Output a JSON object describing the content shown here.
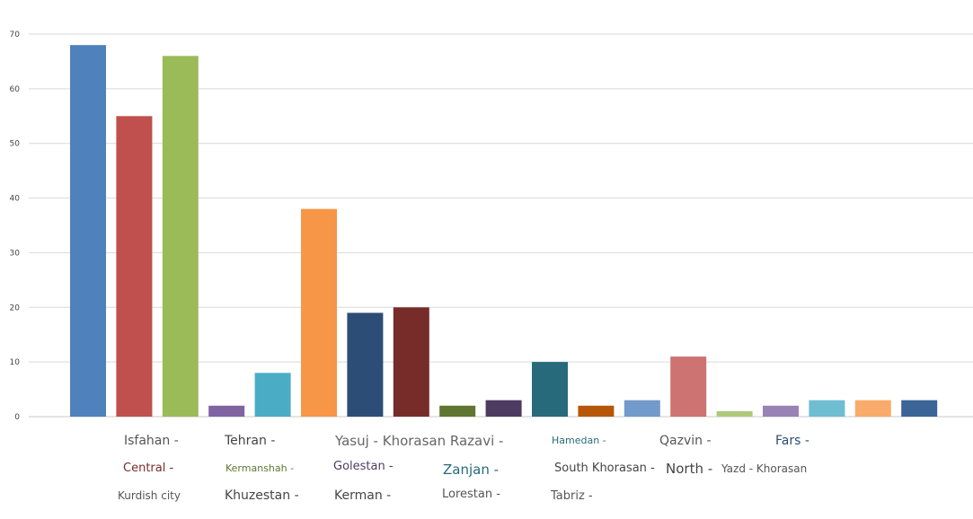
{
  "chart_data": {
    "type": "bar",
    "title": "",
    "xlabel": "",
    "ylabel": "",
    "ylim": [
      0,
      70
    ],
    "yticks": [
      0,
      10,
      20,
      30,
      40,
      50,
      60,
      70
    ],
    "grid": true,
    "legend_position": "bottom",
    "values": [
      68,
      55,
      66,
      2,
      8,
      38,
      19,
      20,
      2,
      3,
      10,
      2,
      3,
      11,
      1,
      2,
      3,
      3,
      3
    ],
    "colors": [
      "#4f81bd",
      "#c0504d",
      "#9bbb59",
      "#8064a2",
      "#4bacc6",
      "#f79646",
      "#2c4d75",
      "#772c2a",
      "#5f7530",
      "#4d3b62",
      "#276a7c",
      "#b65708",
      "#729aca",
      "#cd7371",
      "#afc97a",
      "#9983b5",
      "#6fbdd1",
      "#f9ab6b",
      "#3a6596"
    ],
    "legend": [
      {
        "text": "Isfahan -",
        "color": "#555555"
      },
      {
        "text": "Tehran -",
        "color": "#444444"
      },
      {
        "text": "Yasuj - Khorasan Razavi -",
        "color": "#666666"
      },
      {
        "text": "Hamedan -",
        "color": "#276a7c"
      },
      {
        "text": "Qazvin -",
        "color": "#555555"
      },
      {
        "text": "Fars -",
        "color": "#2c4d75"
      },
      {
        "text": "Central -",
        "color": "#772c2a"
      },
      {
        "text": "Kermanshah -",
        "color": "#5f7530"
      },
      {
        "text": "Golestan -",
        "color": "#4d3b62"
      },
      {
        "text": "Zanjan -",
        "color": "#276a7c"
      },
      {
        "text": "South Khorasan -",
        "color": "#444444"
      },
      {
        "text": "North -",
        "color": "#444444"
      },
      {
        "text": "Yazd - Khorasan",
        "color": "#555555"
      },
      {
        "text": "Kurdish city",
        "color": "#555555"
      },
      {
        "text": "Khuzestan -",
        "color": "#444444"
      },
      {
        "text": "Kerman -",
        "color": "#444444"
      },
      {
        "text": "Lorestan -",
        "color": "#555555"
      },
      {
        "text": "Tabriz -",
        "color": "#555555"
      }
    ]
  }
}
